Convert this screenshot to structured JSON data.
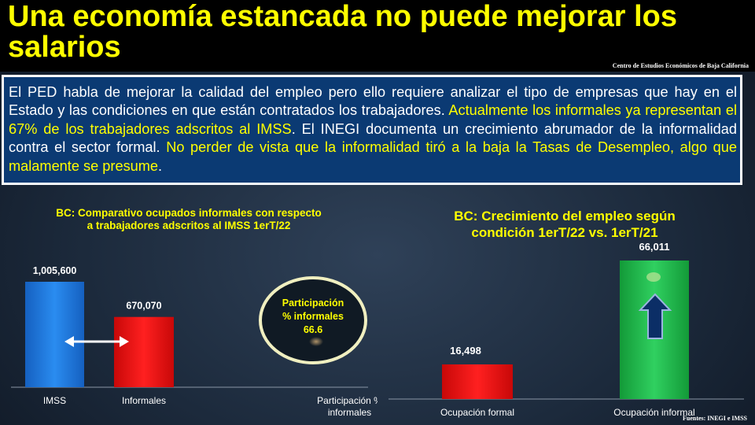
{
  "header": {
    "title": "Una economía estancada no puede mejorar los salarios",
    "source": "Centro de Estudios Económicos de Baja California"
  },
  "body_text": {
    "p1": "El PED habla de mejorar la calidad del empleo pero ello requiere analizar el tipo de empresas que hay en el Estado y las condiciones en que están contratados los trabajadores. ",
    "h1": "Actualmente los informales ya representan el 67% de los trabajadores adscritos al IMSS",
    "p2": ". El INEGI documenta un crecimiento abrumador de la informalidad contra el sector formal. ",
    "h2": "No perder de vista que la informalidad tiró a la baja la Tasas de Desempleo, algo que malamente se presume",
    "p3": "."
  },
  "chart_data": [
    {
      "type": "bar",
      "title": "BC: Comparativo ocupados informales con respecto a trabajadores adscritos al IMSS 1erT/22",
      "categories": [
        "IMSS",
        "Informales",
        "Participación % informales"
      ],
      "values": [
        1005600,
        670070,
        66.6
      ],
      "data_labels": [
        "1,005,600",
        "670,070",
        ""
      ],
      "colors": [
        "#1e78d8",
        "#e81010",
        "#1fb84a"
      ],
      "annotation": {
        "line1": "Participación",
        "line2": "% informales",
        "value": "66.6"
      }
    },
    {
      "type": "bar",
      "title": "BC: Crecimiento del empleo según condición 1erT/22 vs. 1erT/21",
      "categories": [
        "Ocupación formal",
        "Ocupación informal"
      ],
      "values": [
        16498,
        66011
      ],
      "data_labels": [
        "16,498",
        "66,011"
      ],
      "colors": [
        "#e81010",
        "#1fb84a"
      ]
    }
  ],
  "footer": {
    "source": "Fuentes: INEGI e IMSS"
  }
}
